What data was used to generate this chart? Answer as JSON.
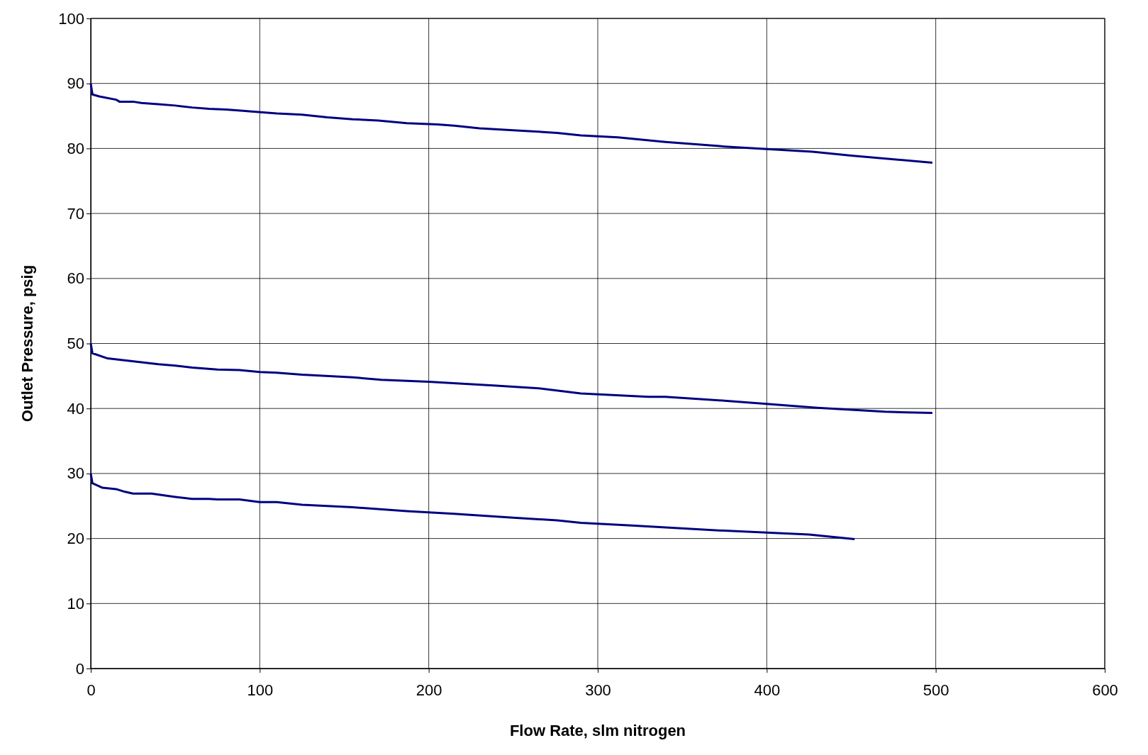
{
  "chart_data": {
    "type": "line",
    "xlabel": "Flow Rate, slm nitrogen",
    "ylabel": "Outlet Pressure, psig",
    "xlim": [
      0,
      600
    ],
    "xticks": [
      0,
      100,
      200,
      300,
      400,
      500,
      600
    ],
    "ylim": [
      0,
      100
    ],
    "yticks": [
      0,
      10,
      20,
      30,
      40,
      50,
      60,
      70,
      80,
      90,
      100
    ],
    "grid": true,
    "marker": "none",
    "line_style": "solid",
    "series": [
      {
        "color": "#000080",
        "x": [
          0,
          1,
          5,
          15,
          17,
          25,
          30,
          40,
          50,
          60,
          70,
          80,
          90,
          95,
          110,
          125,
          140,
          155,
          170,
          187,
          205,
          215,
          230,
          250,
          276,
          290,
          312,
          340,
          375,
          400,
          427,
          450,
          498
        ],
        "values": [
          90,
          88.3,
          88,
          87.5,
          87.2,
          87.2,
          87,
          86.8,
          86.6,
          86.3,
          86.1,
          86,
          85.8,
          85.7,
          85.4,
          85.2,
          84.8,
          84.5,
          84.3,
          83.9,
          83.7,
          83.5,
          83.1,
          82.8,
          82.4,
          82,
          81.7,
          81,
          80.3,
          79.9,
          79.5,
          78.9,
          77.8
        ]
      },
      {
        "color": "#000080",
        "x": [
          0,
          1,
          10,
          20,
          30,
          40,
          50,
          60,
          75,
          88,
          100,
          110,
          125,
          155,
          172,
          200,
          240,
          265,
          290,
          330,
          340,
          375,
          400,
          430,
          470,
          498
        ],
        "values": [
          50,
          48.5,
          47.7,
          47.4,
          47.1,
          46.8,
          46.6,
          46.3,
          46,
          45.9,
          45.6,
          45.5,
          45.2,
          44.8,
          44.4,
          44.1,
          43.5,
          43.1,
          42.3,
          41.8,
          41.8,
          41.2,
          40.7,
          40.1,
          39.5,
          39.3
        ]
      },
      {
        "color": "#000080",
        "x": [
          0,
          1,
          7,
          15,
          20,
          25,
          36,
          50,
          60,
          70,
          75,
          88,
          100,
          110,
          125,
          155,
          187,
          215,
          250,
          276,
          290,
          320,
          375,
          425,
          452
        ],
        "values": [
          30,
          28.5,
          27.8,
          27.6,
          27.2,
          26.9,
          26.9,
          26.4,
          26.1,
          26.1,
          26,
          26,
          25.6,
          25.6,
          25.2,
          24.8,
          24.2,
          23.8,
          23.2,
          22.8,
          22.4,
          22,
          21.2,
          20.6,
          19.9
        ]
      }
    ]
  }
}
